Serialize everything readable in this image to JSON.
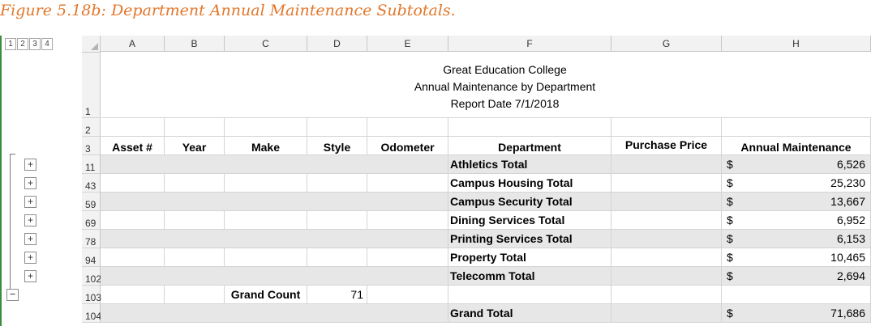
{
  "caption": {
    "label": "Figure 5.18b:",
    "title": "Department Annual Maintenance Subtotals."
  },
  "outline_levels": [
    "1",
    "2",
    "3",
    "4"
  ],
  "columns": [
    "A",
    "B",
    "C",
    "D",
    "E",
    "F",
    "G",
    "H"
  ],
  "report_title": {
    "line1": "Great Education College",
    "line2": "Annual Maintenance by Department",
    "line3": "Report Date 7/1/2018"
  },
  "row_numbers": {
    "title": "1",
    "blank": "2",
    "header": "3"
  },
  "headers": {
    "asset": "Asset #",
    "year": "Year",
    "make": "Make",
    "style": "Style",
    "odometer": "Odometer",
    "department": "Department",
    "purchase_price": "Purchase Price",
    "annual_maintenance": "Annual Maintenance"
  },
  "currency_symbol": "$",
  "expand_symbol": "+",
  "collapse_symbol": "−",
  "subtotal_rows": [
    {
      "row": "11",
      "department": "Athletics Total",
      "amount": "6,526"
    },
    {
      "row": "43",
      "department": "Campus Housing Total",
      "amount": "25,230"
    },
    {
      "row": "59",
      "department": "Campus Security Total",
      "amount": "13,667"
    },
    {
      "row": "69",
      "department": "Dining Services Total",
      "amount": "6,952"
    },
    {
      "row": "78",
      "department": "Printing Services Total",
      "amount": "6,153"
    },
    {
      "row": "94",
      "department": "Property Total",
      "amount": "10,465"
    },
    {
      "row": "102",
      "department": "Telecomm Total",
      "amount": "2,694"
    }
  ],
  "grand_count": {
    "row": "103",
    "label": "Grand Count",
    "value": "71"
  },
  "grand_total": {
    "row": "104",
    "label": "Grand Total",
    "amount": "71,686"
  }
}
